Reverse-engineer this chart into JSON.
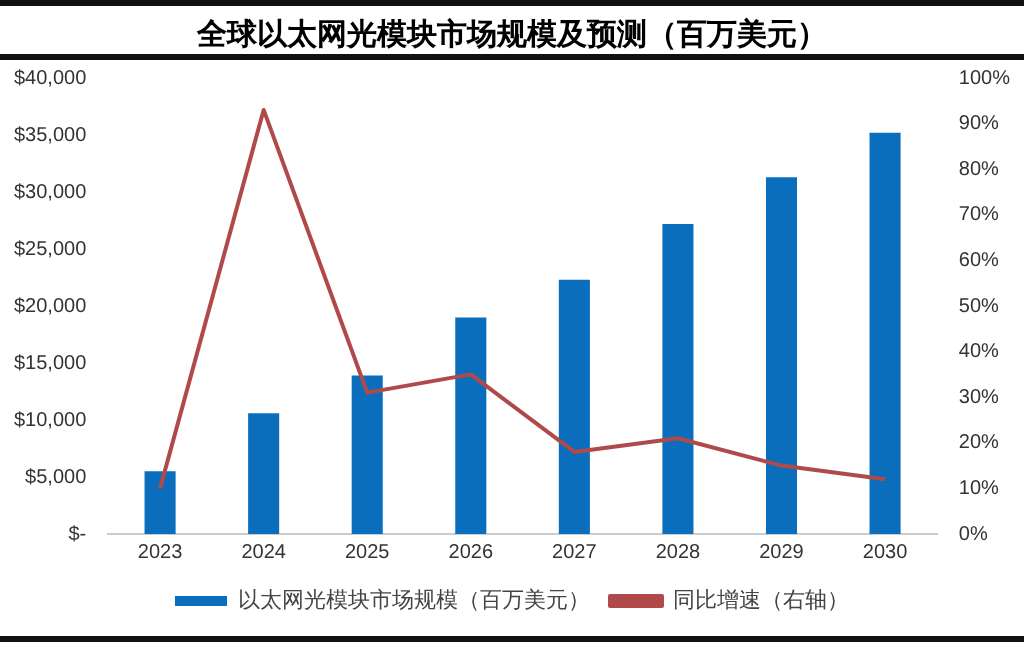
{
  "chart_data": {
    "type": "bar",
    "title": "全球以太网光模块市场规模及预测（百万美元）",
    "categories": [
      "2023",
      "2024",
      "2025",
      "2026",
      "2027",
      "2028",
      "2029",
      "2030"
    ],
    "series": [
      {
        "name": "以太网光模块市场规模（百万美元）",
        "color": "#0a6ebd",
        "values": [
          5500,
          10600,
          13900,
          19000,
          22300,
          27200,
          31300,
          35200
        ]
      },
      {
        "name": "同比增速（右轴）",
        "type": "line",
        "axis": "y2",
        "color": "#b04a4a",
        "values": [
          10,
          93,
          31,
          35,
          18,
          21,
          15,
          12
        ]
      }
    ],
    "ylim": [
      0,
      40000
    ],
    "yticks": [
      {
        "value": 0,
        "label": "$-"
      },
      {
        "value": 5000,
        "label": "$5,000"
      },
      {
        "value": 10000,
        "label": "$10,000"
      },
      {
        "value": 15000,
        "label": "$15,000"
      },
      {
        "value": 20000,
        "label": "$20,000"
      },
      {
        "value": 25000,
        "label": "$25,000"
      },
      {
        "value": 30000,
        "label": "$30,000"
      },
      {
        "value": 35000,
        "label": "$35,000"
      },
      {
        "value": 40000,
        "label": "$40,000"
      }
    ],
    "y2lim": [
      0,
      100
    ],
    "y2ticks": [
      {
        "value": 0,
        "label": "0%"
      },
      {
        "value": 10,
        "label": "10%"
      },
      {
        "value": 20,
        "label": "20%"
      },
      {
        "value": 30,
        "label": "30%"
      },
      {
        "value": 40,
        "label": "40%"
      },
      {
        "value": 50,
        "label": "50%"
      },
      {
        "value": 60,
        "label": "60%"
      },
      {
        "value": 70,
        "label": "70%"
      },
      {
        "value": 80,
        "label": "80%"
      },
      {
        "value": 90,
        "label": "90%"
      },
      {
        "value": 100,
        "label": "100%"
      }
    ],
    "grid": false,
    "legend": "bottom",
    "marker": "none",
    "line_style": "solid"
  }
}
